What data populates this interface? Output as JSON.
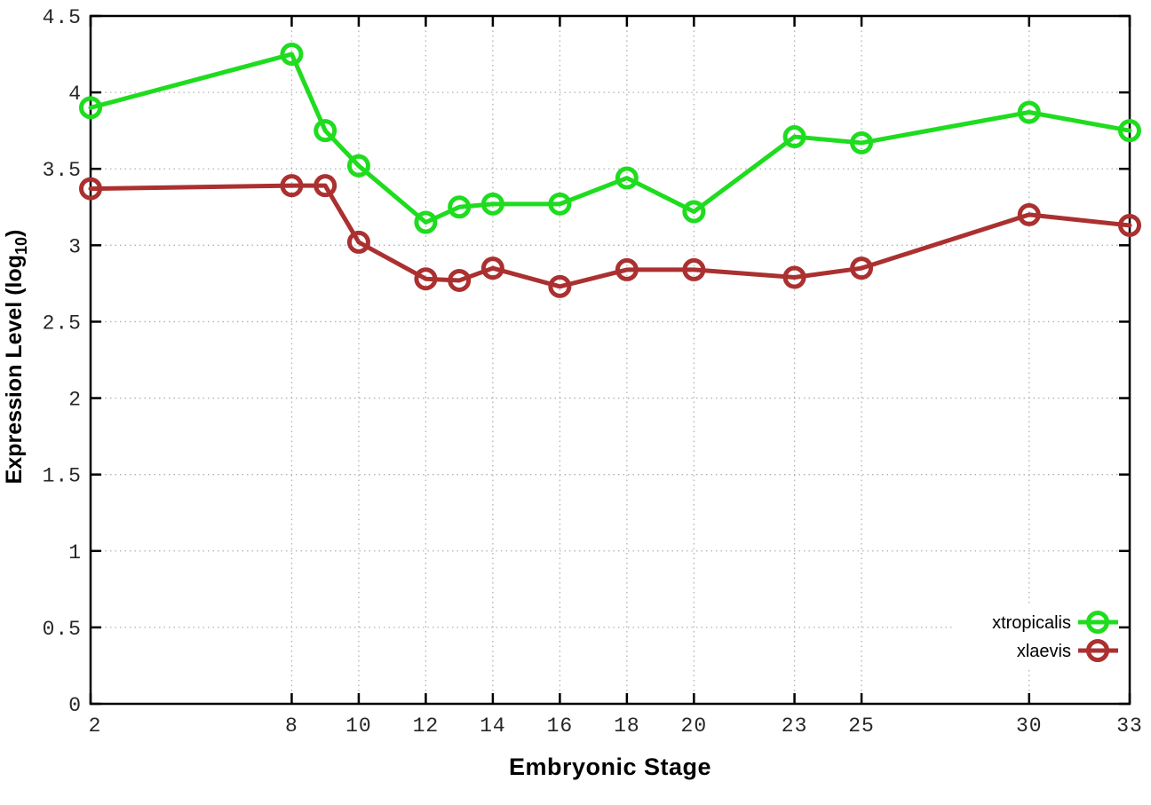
{
  "figure": {
    "background": "#ffffff"
  },
  "chart_data": {
    "type": "line",
    "title": "",
    "xlabel": "Embryonic Stage",
    "ylabel": {
      "text": "Expression Level (log",
      "sub": "10",
      "suffix": ")"
    },
    "x": [
      2,
      8,
      9,
      10,
      12,
      13,
      14,
      16,
      18,
      20,
      23,
      25,
      30,
      33
    ],
    "series": [
      {
        "name": "xtropicalis",
        "color": "#1edc1e",
        "values": [
          3.9,
          4.25,
          3.75,
          3.52,
          3.15,
          3.25,
          3.27,
          3.27,
          3.44,
          3.22,
          3.71,
          3.67,
          3.87,
          3.75
        ]
      },
      {
        "name": "xlaevis",
        "color": "#ab3030",
        "values": [
          3.37,
          3.39,
          3.39,
          3.02,
          2.78,
          2.77,
          2.85,
          2.73,
          2.84,
          2.84,
          2.79,
          2.85,
          3.2,
          3.13
        ]
      }
    ],
    "xticks": [
      2,
      8,
      10,
      12,
      14,
      16,
      18,
      20,
      23,
      25,
      30,
      33
    ],
    "yticks": [
      0,
      0.5,
      1,
      1.5,
      2,
      2.5,
      3,
      3.5,
      4,
      4.5
    ],
    "xlim": [
      2,
      33
    ],
    "ylim": [
      0,
      4.5
    ],
    "grid": true,
    "legend_position": "bottom-right",
    "style_colors": {
      "grid": "#b0b0b0",
      "axis": "#000000",
      "tick_label": "#262626",
      "legend_text": "#000000",
      "legend_box_fill": "#ffffff"
    }
  }
}
